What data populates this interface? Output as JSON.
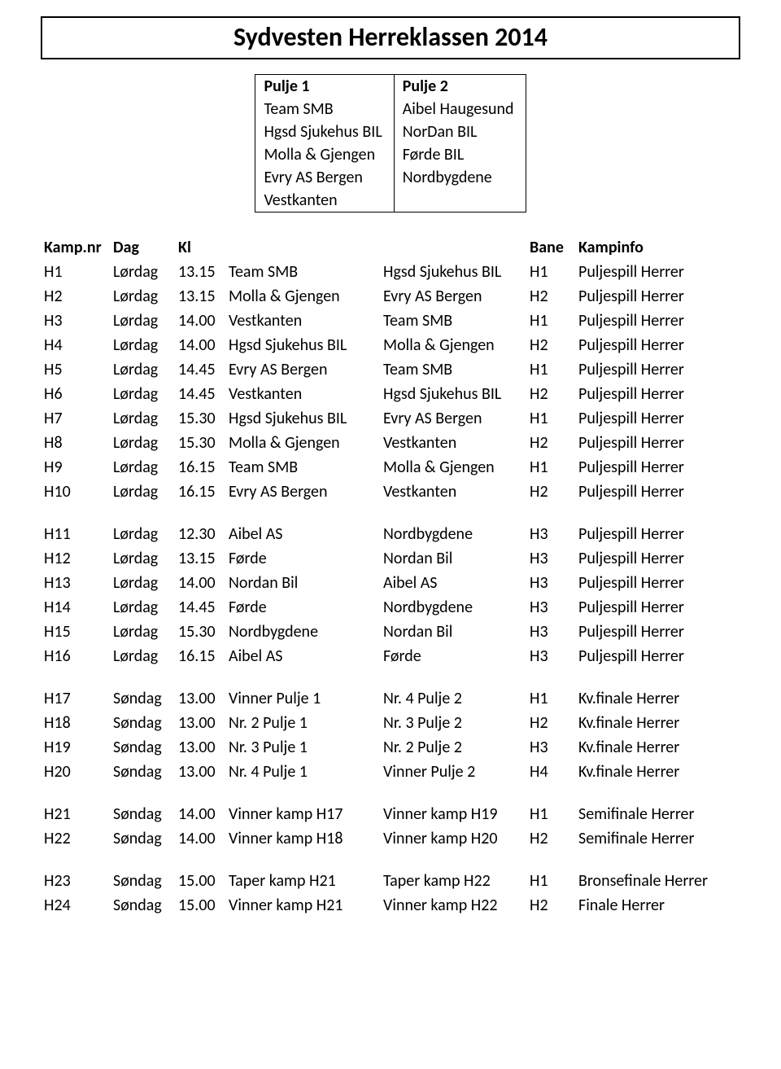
{
  "title": "Sydvesten Herreklassen 2014",
  "pulje": {
    "headers": [
      "Pulje 1",
      "Pulje 2"
    ],
    "rows": [
      [
        "Team SMB",
        "Aibel Haugesund"
      ],
      [
        "Hgsd Sjukehus BIL",
        "NorDan BIL"
      ],
      [
        "Molla & Gjengen",
        "Førde BIL"
      ],
      [
        "Evry AS Bergen",
        "Nordbygdene"
      ],
      [
        "Vestkanten",
        ""
      ]
    ]
  },
  "schedule": {
    "headers": {
      "nr": "Kamp.nr",
      "dag": "Dag",
      "kl": "Kl",
      "bane": "Bane",
      "info": "Kampinfo"
    },
    "groups": [
      [
        {
          "nr": "H1",
          "dag": "Lørdag",
          "kl": "13.15",
          "t1": "Team SMB",
          "t2": "Hgsd Sjukehus BIL",
          "bane": "H1",
          "info": "Puljespill Herrer"
        },
        {
          "nr": "H2",
          "dag": "Lørdag",
          "kl": "13.15",
          "t1": "Molla & Gjengen",
          "t2": "Evry AS Bergen",
          "bane": "H2",
          "info": "Puljespill Herrer"
        },
        {
          "nr": "H3",
          "dag": "Lørdag",
          "kl": "14.00",
          "t1": "Vestkanten",
          "t2": "Team SMB",
          "bane": "H1",
          "info": "Puljespill Herrer"
        },
        {
          "nr": "H4",
          "dag": "Lørdag",
          "kl": "14.00",
          "t1": "Hgsd Sjukehus BIL",
          "t2": "Molla & Gjengen",
          "bane": "H2",
          "info": "Puljespill Herrer"
        },
        {
          "nr": "H5",
          "dag": "Lørdag",
          "kl": "14.45",
          "t1": "Evry AS Bergen",
          "t2": "Team SMB",
          "bane": "H1",
          "info": "Puljespill Herrer"
        },
        {
          "nr": "H6",
          "dag": "Lørdag",
          "kl": "14.45",
          "t1": "Vestkanten",
          "t2": "Hgsd Sjukehus BIL",
          "bane": "H2",
          "info": "Puljespill Herrer"
        },
        {
          "nr": "H7",
          "dag": "Lørdag",
          "kl": "15.30",
          "t1": "Hgsd Sjukehus BIL",
          "t2": "Evry AS Bergen",
          "bane": "H1",
          "info": "Puljespill Herrer"
        },
        {
          "nr": "H8",
          "dag": "Lørdag",
          "kl": "15.30",
          "t1": "Molla & Gjengen",
          "t2": "Vestkanten",
          "bane": "H2",
          "info": "Puljespill Herrer"
        },
        {
          "nr": "H9",
          "dag": "Lørdag",
          "kl": "16.15",
          "t1": "Team SMB",
          "t2": "Molla & Gjengen",
          "bane": "H1",
          "info": "Puljespill Herrer"
        },
        {
          "nr": "H10",
          "dag": "Lørdag",
          "kl": "16.15",
          "t1": "Evry AS Bergen",
          "t2": "Vestkanten",
          "bane": "H2",
          "info": "Puljespill Herrer"
        }
      ],
      [
        {
          "nr": "H11",
          "dag": "Lørdag",
          "kl": "12.30",
          "t1": "Aibel AS",
          "t2": "Nordbygdene",
          "bane": "H3",
          "info": "Puljespill Herrer"
        },
        {
          "nr": "H12",
          "dag": "Lørdag",
          "kl": "13.15",
          "t1": "Førde",
          "t2": "Nordan Bil",
          "bane": "H3",
          "info": "Puljespill Herrer"
        },
        {
          "nr": "H13",
          "dag": "Lørdag",
          "kl": "14.00",
          "t1": "Nordan Bil",
          "t2": "Aibel AS",
          "bane": "H3",
          "info": "Puljespill Herrer"
        },
        {
          "nr": "H14",
          "dag": "Lørdag",
          "kl": "14.45",
          "t1": "Førde",
          "t2": "Nordbygdene",
          "bane": "H3",
          "info": "Puljespill Herrer"
        },
        {
          "nr": "H15",
          "dag": "Lørdag",
          "kl": "15.30",
          "t1": "Nordbygdene",
          "t2": "Nordan Bil",
          "bane": "H3",
          "info": "Puljespill Herrer"
        },
        {
          "nr": "H16",
          "dag": "Lørdag",
          "kl": "16.15",
          "t1": "Aibel AS",
          "t2": "Førde",
          "bane": "H3",
          "info": "Puljespill Herrer"
        }
      ],
      [
        {
          "nr": "H17",
          "dag": "Søndag",
          "kl": "13.00",
          "t1": "Vinner Pulje 1",
          "t2": "Nr. 4 Pulje 2",
          "bane": "H1",
          "info": "Kv.finale Herrer"
        },
        {
          "nr": "H18",
          "dag": "Søndag",
          "kl": "13.00",
          "t1": "Nr. 2 Pulje 1",
          "t2": "Nr. 3 Pulje 2",
          "bane": "H2",
          "info": "Kv.finale Herrer"
        },
        {
          "nr": "H19",
          "dag": "Søndag",
          "kl": "13.00",
          "t1": "Nr. 3 Pulje 1",
          "t2": "Nr. 2 Pulje 2",
          "bane": "H3",
          "info": "Kv.finale Herrer"
        },
        {
          "nr": "H20",
          "dag": "Søndag",
          "kl": "13.00",
          "t1": "Nr. 4 Pulje 1",
          "t2": "Vinner Pulje 2",
          "bane": "H4",
          "info": "Kv.finale Herrer"
        }
      ],
      [
        {
          "nr": "H21",
          "dag": "Søndag",
          "kl": "14.00",
          "t1": "Vinner kamp H17",
          "t2": "Vinner kamp H19",
          "bane": "H1",
          "info": "Semifinale Herrer"
        },
        {
          "nr": "H22",
          "dag": "Søndag",
          "kl": "14.00",
          "t1": "Vinner kamp H18",
          "t2": "Vinner kamp H20",
          "bane": "H2",
          "info": "Semifinale Herrer"
        }
      ],
      [
        {
          "nr": "H23",
          "dag": "Søndag",
          "kl": "15.00",
          "t1": "Taper kamp H21",
          "t2": "Taper kamp H22",
          "bane": "H1",
          "info": "Bronsefinale Herrer"
        },
        {
          "nr": "H24",
          "dag": "Søndag",
          "kl": "15.00",
          "t1": "Vinner kamp H21",
          "t2": "Vinner kamp H22",
          "bane": "H2",
          "info": "Finale Herrer"
        }
      ]
    ]
  }
}
